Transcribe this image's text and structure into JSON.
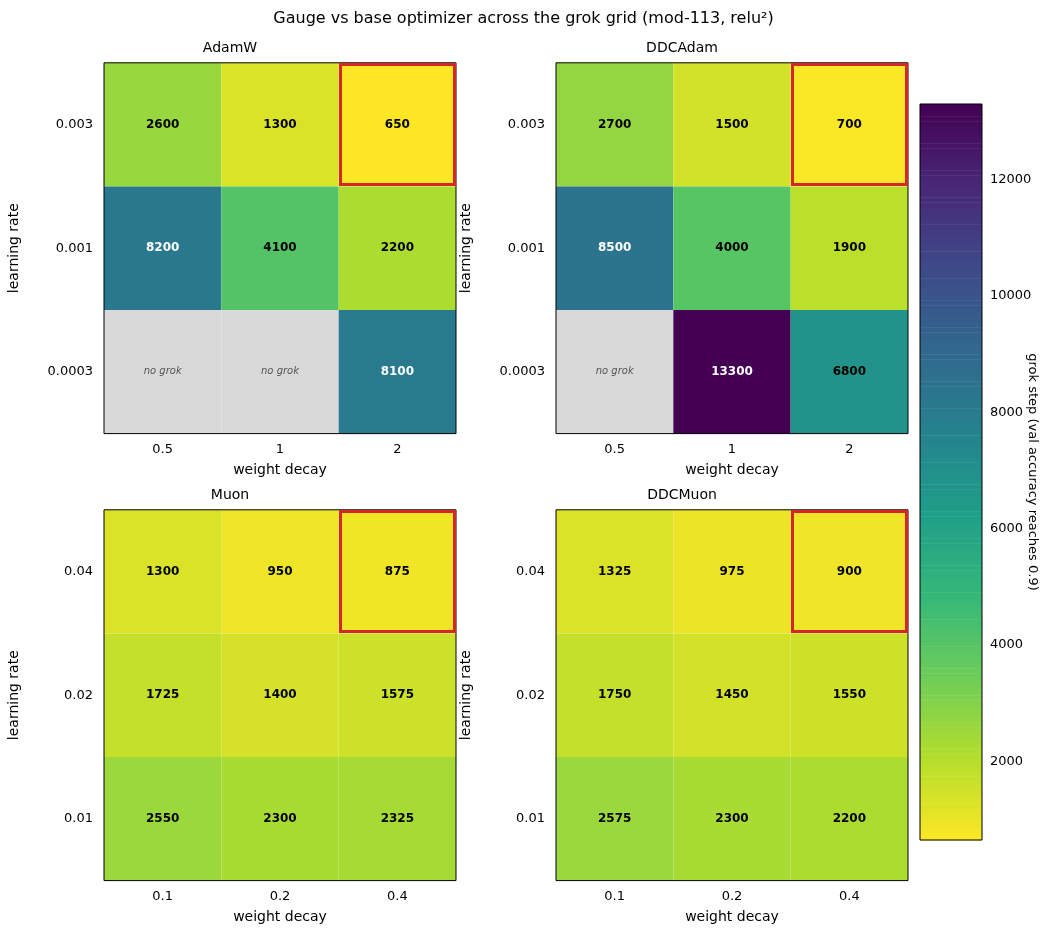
{
  "chart_data": [
    {
      "type": "heatmap",
      "title": "AdamW",
      "xlabel": "weight decay",
      "ylabel": "learning rate",
      "annotations": [
        "Gauge vs base optimizer across the grok grid (mod-113, relu²)"
      ],
      "categories": [
        "0.5",
        "1",
        "2"
      ],
      "y_categories": [
        "0.003",
        "0.001",
        "0.0003"
      ],
      "cells": [
        [
          2600,
          1300,
          650
        ],
        [
          8200,
          4100,
          2200
        ],
        [
          null,
          null,
          8100
        ]
      ],
      "cell_labels": [
        [
          "2600",
          "1300",
          "650"
        ],
        [
          "8200",
          "4100",
          "2200"
        ],
        [
          "no grok",
          "no grok",
          "8100"
        ]
      ]
    },
    {
      "type": "heatmap",
      "title": "DDCAdam",
      "xlabel": "weight decay",
      "ylabel": "learning rate",
      "categories": [
        "0.5",
        "1",
        "2"
      ],
      "y_categories": [
        "0.003",
        "0.001",
        "0.0003"
      ],
      "cells": [
        [
          2700,
          1500,
          700
        ],
        [
          8500,
          4000,
          1900
        ],
        [
          null,
          13300,
          6800
        ]
      ],
      "cell_labels": [
        [
          "2700",
          "1500",
          "700"
        ],
        [
          "8500",
          "4000",
          "1900"
        ],
        [
          "no grok",
          "13300",
          "6800"
        ]
      ],
      "clabel": "grok step (val accuracy reaches 0.9)",
      "clim": [
        650,
        13300
      ],
      "cticks": [
        2000,
        4000,
        6000,
        8000,
        10000,
        12000
      ]
    },
    {
      "type": "heatmap",
      "title": "Muon",
      "xlabel": "weight decay",
      "ylabel": "learning rate",
      "categories": [
        "0.1",
        "0.2",
        "0.4"
      ],
      "y_categories": [
        "0.04",
        "0.02",
        "0.01"
      ],
      "cells": [
        [
          1300,
          950,
          875
        ],
        [
          1725,
          1400,
          1575
        ],
        [
          2550,
          2300,
          2325
        ]
      ],
      "data_labels": true
    },
    {
      "type": "heatmap",
      "title": "DDCMuon",
      "xlabel": "weight decay",
      "ylabel": "learning rate",
      "categories": [
        "0.1",
        "0.2",
        "0.4"
      ],
      "y_categories": [
        "0.04",
        "0.02",
        "0.01"
      ],
      "cells": [
        [
          1325,
          975,
          900
        ],
        [
          1750,
          1450,
          1550
        ],
        [
          2575,
          2300,
          2200
        ]
      ],
      "data_labels": true
    }
  ]
}
